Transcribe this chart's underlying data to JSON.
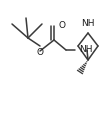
{
  "bg_color": "#ffffff",
  "line_color": "#3a3a3a",
  "text_color": "#1a1a1a",
  "line_width": 1.1,
  "figsize": [
    1.07,
    1.18
  ],
  "dpi": 100,
  "xlim": [
    0,
    107
  ],
  "ylim": [
    0,
    118
  ]
}
